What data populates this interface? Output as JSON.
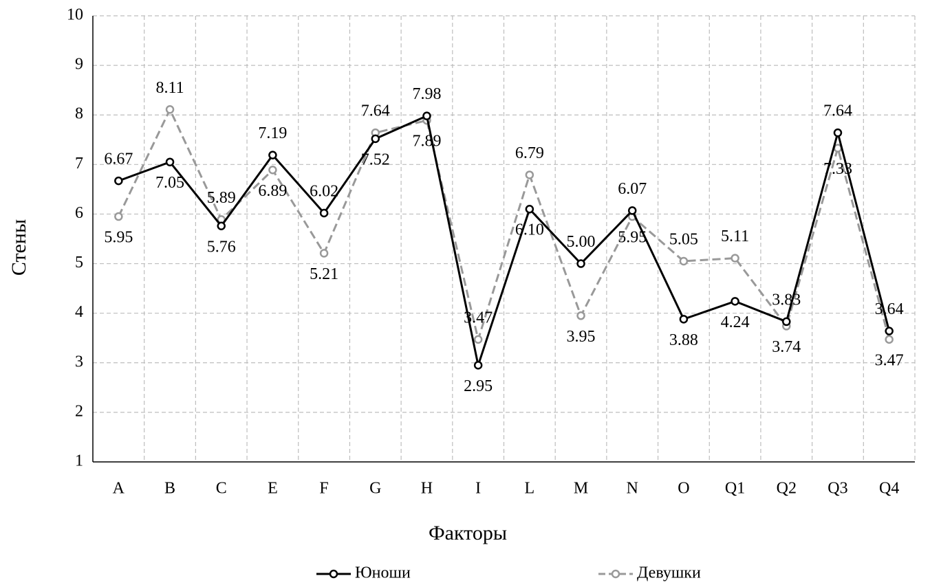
{
  "chart_data": {
    "type": "line",
    "categories": [
      "A",
      "B",
      "C",
      "E",
      "F",
      "G",
      "H",
      "I",
      "L",
      "M",
      "N",
      "O",
      "Q1",
      "Q2",
      "Q3",
      "Q4"
    ],
    "series": [
      {
        "name": "Юноши",
        "color": "#000000",
        "dash": false,
        "values": [
          6.67,
          7.05,
          5.76,
          7.19,
          6.02,
          7.52,
          7.98,
          2.95,
          6.1,
          5.0,
          6.07,
          3.88,
          4.24,
          3.83,
          7.64,
          3.64
        ],
        "value_labels": [
          "6.67",
          "7.05",
          "5.76",
          "7.19",
          "6.02",
          "7.52",
          "7.98",
          "2.95",
          "6.10",
          "5.00",
          "6.07",
          "3.88",
          "4.24",
          "3.83",
          "7.64",
          "3.64"
        ]
      },
      {
        "name": "Девушки",
        "color": "#999999",
        "dash": true,
        "values": [
          5.95,
          8.11,
          5.89,
          6.89,
          5.21,
          7.64,
          7.89,
          3.47,
          6.79,
          3.95,
          5.95,
          5.05,
          5.11,
          3.74,
          7.33,
          3.47
        ],
        "value_labels": [
          "5.95",
          "8.11",
          "5.89",
          "6.89",
          "5.21",
          "7.64",
          "7.89",
          "3.47",
          "6.79",
          "3.95",
          "5.95",
          "5.05",
          "5.11",
          "3.74",
          "7.33",
          "3.47"
        ]
      }
    ],
    "ylim": [
      1,
      10
    ],
    "yticks": [
      1,
      2,
      3,
      4,
      5,
      6,
      7,
      8,
      9,
      10
    ],
    "grid": true,
    "xlabel": "Факторы",
    "ylabel": "Стены",
    "legend": "bottom"
  }
}
